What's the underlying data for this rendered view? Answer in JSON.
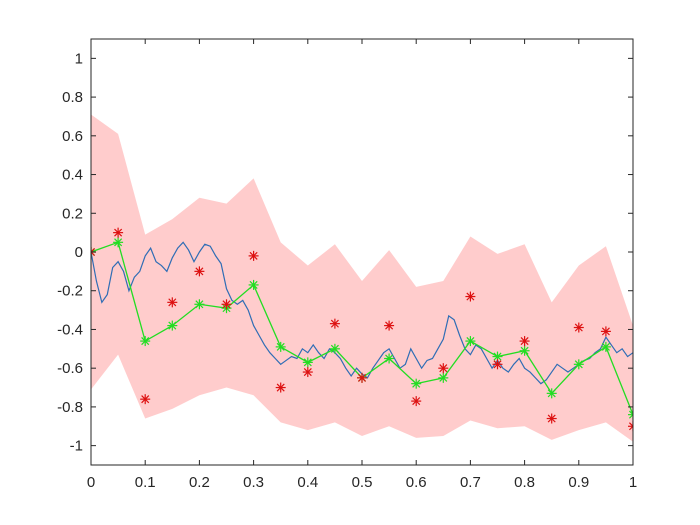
{
  "chart_data": {
    "type": "line",
    "title": "",
    "xlabel": "",
    "ylabel": "",
    "xlim": [
      0,
      1
    ],
    "ylim": [
      -1.1,
      1.1
    ],
    "xticks": [
      0,
      0.1,
      0.2,
      0.3,
      0.4,
      0.5,
      0.6,
      0.7,
      0.8,
      0.9,
      1
    ],
    "xtick_labels": [
      "0",
      "0.1",
      "0.2",
      "0.3",
      "0.4",
      "0.5",
      "0.6",
      "0.7",
      "0.8",
      "0.9",
      "1"
    ],
    "yticks": [
      1,
      0.8,
      0.6,
      0.4,
      0.2,
      0,
      -0.2,
      -0.4,
      -0.6,
      -0.8,
      -1
    ],
    "ytick_labels": [
      "1",
      "0.8",
      "0.6",
      "0.4",
      "0.2",
      "0",
      "-0.2",
      "-0.4",
      "-0.6",
      "-0.8",
      "-1"
    ],
    "grid": false,
    "legend": false,
    "band": {
      "color": "#ffcccc",
      "x": [
        0,
        0.05,
        0.1,
        0.15,
        0.2,
        0.25,
        0.3,
        0.35,
        0.4,
        0.45,
        0.5,
        0.55,
        0.6,
        0.65,
        0.7,
        0.75,
        0.8,
        0.85,
        0.9,
        0.95,
        1
      ],
      "upper": [
        0.71,
        0.61,
        0.09,
        0.17,
        0.28,
        0.25,
        0.38,
        0.05,
        -0.07,
        0.04,
        -0.15,
        0.01,
        -0.18,
        -0.15,
        0.08,
        -0.01,
        0.04,
        -0.26,
        -0.07,
        0.03,
        -0.38
      ],
      "lower": [
        -0.71,
        -0.53,
        -0.86,
        -0.81,
        -0.74,
        -0.7,
        -0.74,
        -0.88,
        -0.92,
        -0.88,
        -0.95,
        -0.9,
        -0.96,
        -0.95,
        -0.87,
        -0.91,
        -0.9,
        -0.97,
        -0.92,
        -0.88,
        -0.98
      ]
    },
    "series": [
      {
        "type": "stairs",
        "color": "#2f6db5",
        "x": [
          0,
          0.01,
          0.02,
          0.03,
          0.04,
          0.05,
          0.06,
          0.07,
          0.08,
          0.09,
          0.1,
          0.11,
          0.12,
          0.13,
          0.14,
          0.15,
          0.16,
          0.17,
          0.18,
          0.19,
          0.2,
          0.21,
          0.22,
          0.23,
          0.24,
          0.25,
          0.26,
          0.27,
          0.28,
          0.29,
          0.3,
          0.31,
          0.32,
          0.33,
          0.34,
          0.35,
          0.36,
          0.37,
          0.38,
          0.39,
          0.4,
          0.41,
          0.42,
          0.43,
          0.44,
          0.45,
          0.46,
          0.47,
          0.48,
          0.49,
          0.5,
          0.51,
          0.52,
          0.53,
          0.54,
          0.55,
          0.56,
          0.57,
          0.58,
          0.59,
          0.6,
          0.61,
          0.62,
          0.63,
          0.64,
          0.65,
          0.66,
          0.67,
          0.68,
          0.69,
          0.7,
          0.71,
          0.72,
          0.73,
          0.74,
          0.75,
          0.76,
          0.77,
          0.78,
          0.79,
          0.8,
          0.81,
          0.82,
          0.83,
          0.84,
          0.85,
          0.86,
          0.87,
          0.88,
          0.89,
          0.9,
          0.91,
          0.92,
          0.93,
          0.94,
          0.95,
          0.96,
          0.97,
          0.98,
          0.99,
          1
        ],
        "y": [
          0,
          -0.15,
          -0.26,
          -0.22,
          -0.08,
          -0.05,
          -0.1,
          -0.2,
          -0.13,
          -0.1,
          -0.02,
          0.02,
          -0.05,
          -0.07,
          -0.1,
          -0.03,
          0.02,
          0.05,
          0.01,
          -0.05,
          0.0,
          0.04,
          0.03,
          -0.02,
          -0.06,
          -0.19,
          -0.25,
          -0.27,
          -0.25,
          -0.3,
          -0.38,
          -0.43,
          -0.48,
          -0.52,
          -0.55,
          -0.58,
          -0.56,
          -0.54,
          -0.55,
          -0.5,
          -0.52,
          -0.48,
          -0.52,
          -0.55,
          -0.5,
          -0.52,
          -0.55,
          -0.6,
          -0.64,
          -0.6,
          -0.63,
          -0.65,
          -0.6,
          -0.56,
          -0.52,
          -0.5,
          -0.55,
          -0.6,
          -0.58,
          -0.5,
          -0.55,
          -0.6,
          -0.56,
          -0.55,
          -0.5,
          -0.45,
          -0.33,
          -0.35,
          -0.43,
          -0.5,
          -0.53,
          -0.48,
          -0.5,
          -0.55,
          -0.6,
          -0.56,
          -0.6,
          -0.62,
          -0.58,
          -0.55,
          -0.6,
          -0.62,
          -0.65,
          -0.68,
          -0.66,
          -0.62,
          -0.58,
          -0.6,
          -0.62,
          -0.6,
          -0.58,
          -0.56,
          -0.55,
          -0.52,
          -0.5,
          -0.44,
          -0.48,
          -0.52,
          -0.5,
          -0.54,
          -0.52
        ]
      },
      {
        "type": "line",
        "color": "#22dd22",
        "marker": "*",
        "x": [
          0,
          0.05,
          0.1,
          0.15,
          0.2,
          0.25,
          0.3,
          0.35,
          0.4,
          0.45,
          0.5,
          0.55,
          0.6,
          0.65,
          0.7,
          0.75,
          0.8,
          0.85,
          0.9,
          0.95,
          1
        ],
        "y": [
          0.0,
          0.05,
          -0.46,
          -0.38,
          -0.27,
          -0.29,
          -0.17,
          -0.49,
          -0.57,
          -0.5,
          -0.65,
          -0.55,
          -0.68,
          -0.65,
          -0.46,
          -0.54,
          -0.51,
          -0.73,
          -0.58,
          -0.49,
          -0.84
        ]
      },
      {
        "type": "scatter",
        "color": "#dd1111",
        "marker": "*",
        "x": [
          0,
          0.05,
          0.1,
          0.15,
          0.2,
          0.25,
          0.3,
          0.35,
          0.4,
          0.45,
          0.5,
          0.55,
          0.6,
          0.65,
          0.7,
          0.75,
          0.8,
          0.85,
          0.9,
          0.95,
          1
        ],
        "y": [
          0.0,
          0.1,
          -0.76,
          -0.26,
          -0.1,
          -0.27,
          -0.02,
          -0.7,
          -0.62,
          -0.37,
          -0.65,
          -0.38,
          -0.77,
          -0.6,
          -0.23,
          -0.58,
          -0.46,
          -0.86,
          -0.39,
          -0.41,
          -0.9
        ]
      }
    ]
  }
}
